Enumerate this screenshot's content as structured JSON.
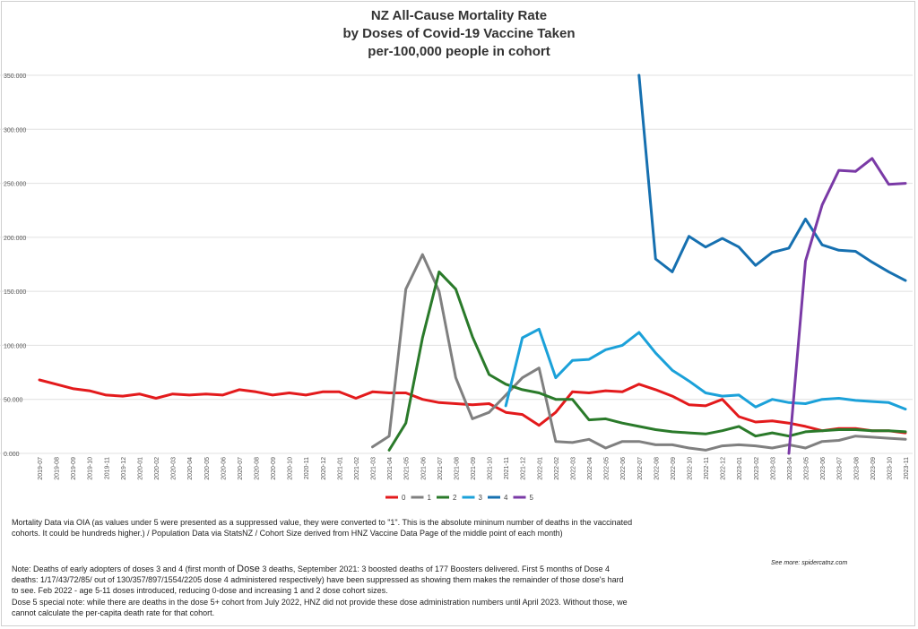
{
  "chart_data": {
    "type": "line",
    "title_lines": [
      "NZ All-Cause Mortality Rate",
      "by Doses of Covid-19 Vaccine Taken",
      "per-100,000 people in cohort"
    ],
    "xlabel": "",
    "ylabel": "",
    "ylim": [
      0,
      350
    ],
    "yticks": [
      0,
      50,
      100,
      150,
      200,
      250,
      300,
      350
    ],
    "ytick_labels": [
      "0.000",
      "50.000",
      "100.000",
      "150.000",
      "200.000",
      "250.000",
      "300.000",
      "350.000"
    ],
    "grid": true,
    "legend_position": "bottom",
    "categories": [
      "2019-07",
      "2019-08",
      "2019-09",
      "2019-10",
      "2019-11",
      "2019-12",
      "2020-01",
      "2020-02",
      "2020-03",
      "2020-04",
      "2020-05",
      "2020-06",
      "2020-07",
      "2020-08",
      "2020-09",
      "2020-10",
      "2020-11",
      "2020-12",
      "2021-01",
      "2021-02",
      "2021-03",
      "2021-04",
      "2021-05",
      "2021-06",
      "2021-07",
      "2021-08",
      "2021-09",
      "2021-10",
      "2021-11",
      "2021-12",
      "2022-01",
      "2022-02",
      "2022-03",
      "2022-04",
      "2022-05",
      "2022-06",
      "2022-07",
      "2022-08",
      "2022-09",
      "2022-10",
      "2022-11",
      "2022-12",
      "2023-01",
      "2023-02",
      "2023-03",
      "2023-04",
      "2023-05",
      "2023-06",
      "2023-07",
      "2023-08",
      "2023-09",
      "2023-10",
      "2023-11"
    ],
    "series": [
      {
        "name": "0",
        "color": "#e31a1c",
        "values": [
          68,
          64,
          60,
          58,
          54,
          53,
          55,
          51,
          55,
          54,
          55,
          54,
          59,
          57,
          54,
          56,
          54,
          57,
          57,
          51,
          57,
          56,
          56,
          50,
          47,
          46,
          45,
          46,
          38,
          36,
          26,
          38,
          57,
          56,
          58,
          57,
          64,
          59,
          53,
          45,
          44,
          50,
          34,
          29,
          30,
          28,
          25,
          21,
          23,
          23,
          21,
          21,
          19
        ]
      },
      {
        "name": "1",
        "color": "#808080",
        "values": [
          null,
          null,
          null,
          null,
          null,
          null,
          null,
          null,
          null,
          null,
          null,
          null,
          null,
          null,
          null,
          null,
          null,
          null,
          null,
          null,
          6,
          16,
          152,
          184,
          150,
          70,
          32,
          38,
          54,
          70,
          79,
          11,
          10,
          13,
          5,
          11,
          11,
          8,
          8,
          5,
          3,
          7,
          8,
          7,
          5,
          8,
          5,
          11,
          12,
          16,
          15,
          14,
          13
        ]
      },
      {
        "name": "2",
        "color": "#2a7a2a",
        "values": [
          null,
          null,
          null,
          null,
          null,
          null,
          null,
          null,
          null,
          null,
          null,
          null,
          null,
          null,
          null,
          null,
          null,
          null,
          null,
          null,
          null,
          3,
          28,
          107,
          168,
          152,
          108,
          73,
          64,
          59,
          56,
          50,
          50,
          31,
          32,
          28,
          25,
          22,
          20,
          19,
          18,
          21,
          25,
          16,
          19,
          16,
          20,
          21,
          22,
          22,
          21,
          21,
          20
        ]
      },
      {
        "name": "3",
        "color": "#1ba1d9",
        "values": [
          null,
          null,
          null,
          null,
          null,
          null,
          null,
          null,
          null,
          null,
          null,
          null,
          null,
          null,
          null,
          null,
          null,
          null,
          null,
          null,
          null,
          null,
          null,
          null,
          null,
          null,
          null,
          null,
          44,
          107,
          115,
          70,
          86,
          87,
          96,
          100,
          112,
          93,
          77,
          67,
          56,
          53,
          54,
          43,
          50,
          47,
          46,
          50,
          51,
          49,
          48,
          47,
          41
        ]
      },
      {
        "name": "4",
        "color": "#1670b0",
        "values": [
          null,
          null,
          null,
          null,
          null,
          null,
          null,
          null,
          null,
          null,
          null,
          null,
          null,
          null,
          null,
          null,
          null,
          null,
          null,
          null,
          null,
          null,
          null,
          null,
          null,
          null,
          null,
          null,
          null,
          null,
          null,
          null,
          null,
          null,
          null,
          null,
          350,
          180,
          168,
          201,
          191,
          199,
          191,
          174,
          186,
          190,
          217,
          193,
          188,
          187,
          177,
          168,
          160
        ]
      },
      {
        "name": "5",
        "color": "#7a3aa6",
        "values": [
          null,
          null,
          null,
          null,
          null,
          null,
          null,
          null,
          null,
          null,
          null,
          null,
          null,
          null,
          null,
          null,
          null,
          null,
          null,
          null,
          null,
          null,
          null,
          null,
          null,
          null,
          null,
          null,
          null,
          null,
          null,
          null,
          null,
          null,
          null,
          null,
          null,
          null,
          null,
          null,
          null,
          null,
          null,
          null,
          null,
          0,
          178,
          230,
          262,
          261,
          273,
          249,
          250
        ]
      }
    ]
  },
  "notes": {
    "p1": "Mortality Data via OIA (as values under 5 were presented as a suppressed value, they were converted to \"1\".  This is the absolute mininum number of deaths in the vaccinated cohorts.  It could be hundreds higher.) / Population Data via StatsNZ / Cohort Size derived from HNZ Vaccine Data Page of the middle point of each month)",
    "p2a": "Note: Deaths of early adopters of doses 3 and 4 (first month of ",
    "p2b": "Dose",
    "p2c": " 3 deaths, September 2021: 3 boosted deaths of 177 Boosters delivered. First 5 months of Dose 4 deaths:  1/17/43/72/85/ out of 130/357/897/1554/2205 dose 4 administered respectively) have been suppressed as showing them makes the remainder of those dose's hard to see.  Feb 2022 - age 5-11 doses introduced, reducing 0-dose and increasing 1 and 2 dose cohort sizes.",
    "p3": "Dose 5 special note: while there are deaths in the dose 5+ cohort from July 2022, HNZ did not provide these dose administration numbers until April 2023.  Without those, we cannot calculate the per-capita death rate for that cohort.",
    "credit": "See more: spidercatnz.com"
  }
}
